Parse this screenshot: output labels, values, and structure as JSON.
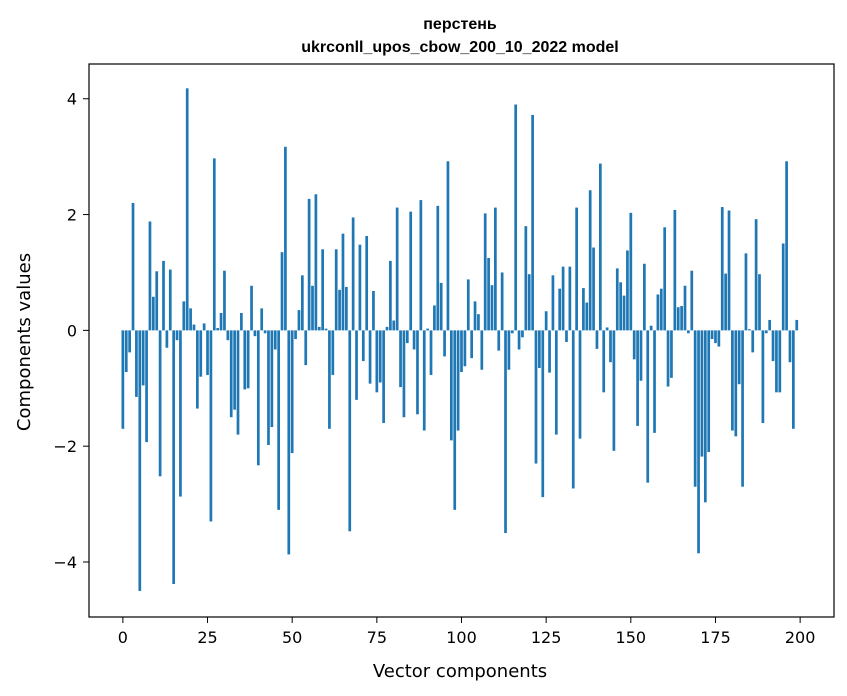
{
  "chart_data": {
    "type": "bar",
    "title": "перстень",
    "subtitle": "ukrconll_upos_cbow_200_10_2022 model",
    "xlabel": "Vector components",
    "ylabel": "Components values",
    "xlim": [
      -10,
      210
    ],
    "ylim": [
      -4.95,
      4.6
    ],
    "xticks": [
      0,
      25,
      50,
      75,
      100,
      125,
      150,
      175,
      200
    ],
    "yticks": [
      -4,
      -2,
      0,
      2,
      4
    ],
    "xtick_labels": [
      "0",
      "25",
      "50",
      "75",
      "100",
      "125",
      "150",
      "175",
      "200"
    ],
    "ytick_labels": [
      "−4",
      "−2",
      "0",
      "2",
      "4"
    ],
    "grid": false,
    "legend": "none",
    "bar_color": "#1f77b4",
    "x": [
      0,
      1,
      2,
      3,
      4,
      5,
      6,
      7,
      8,
      9,
      10,
      11,
      12,
      13,
      14,
      15,
      16,
      17,
      18,
      19,
      20,
      21,
      22,
      23,
      24,
      25,
      26,
      27,
      28,
      29,
      30,
      31,
      32,
      33,
      34,
      35,
      36,
      37,
      38,
      39,
      40,
      41,
      42,
      43,
      44,
      45,
      46,
      47,
      48,
      49,
      50,
      51,
      52,
      53,
      54,
      55,
      56,
      57,
      58,
      59,
      60,
      61,
      62,
      63,
      64,
      65,
      66,
      67,
      68,
      69,
      70,
      71,
      72,
      73,
      74,
      75,
      76,
      77,
      78,
      79,
      80,
      81,
      82,
      83,
      84,
      85,
      86,
      87,
      88,
      89,
      90,
      91,
      92,
      93,
      94,
      95,
      96,
      97,
      98,
      99,
      100,
      101,
      102,
      103,
      104,
      105,
      106,
      107,
      108,
      109,
      110,
      111,
      112,
      113,
      114,
      115,
      116,
      117,
      118,
      119,
      120,
      121,
      122,
      123,
      124,
      125,
      126,
      127,
      128,
      129,
      130,
      131,
      132,
      133,
      134,
      135,
      136,
      137,
      138,
      139,
      140,
      141,
      142,
      143,
      144,
      145,
      146,
      147,
      148,
      149,
      150,
      151,
      152,
      153,
      154,
      155,
      156,
      157,
      158,
      159,
      160,
      161,
      162,
      163,
      164,
      165,
      166,
      167,
      168,
      169,
      170,
      171,
      172,
      173,
      174,
      175,
      176,
      177,
      178,
      179,
      180,
      181,
      182,
      183,
      184,
      185,
      186,
      187,
      188,
      189,
      190,
      191,
      192,
      193,
      194,
      195,
      196,
      197,
      198,
      199
    ],
    "values": [
      -1.7,
      -0.72,
      -0.38,
      2.2,
      -1.15,
      -4.5,
      -0.95,
      -1.93,
      1.88,
      0.58,
      1.02,
      -2.52,
      1.2,
      -0.3,
      1.05,
      -4.38,
      -0.17,
      -2.87,
      0.5,
      4.18,
      0.38,
      0.1,
      -1.35,
      -0.8,
      0.12,
      -0.77,
      -3.3,
      2.97,
      0.04,
      0.3,
      1.03,
      -0.17,
      -1.5,
      -1.37,
      -1.8,
      0.3,
      -1.02,
      -1.0,
      0.77,
      -0.1,
      -2.33,
      0.38,
      -0.05,
      -1.98,
      -1.67,
      -0.33,
      -3.1,
      1.35,
      3.17,
      -3.87,
      -2.12,
      -0.15,
      0.35,
      0.95,
      -0.6,
      2.27,
      0.77,
      2.35,
      0.06,
      1.4,
      0.03,
      -1.7,
      -0.77,
      1.4,
      0.7,
      1.67,
      0.75,
      -3.47,
      1.95,
      -1.2,
      1.48,
      -0.53,
      1.63,
      -0.92,
      0.68,
      -1.07,
      -0.9,
      -1.6,
      0.06,
      1.2,
      0.17,
      2.12,
      -0.98,
      -1.5,
      -0.22,
      2.05,
      -0.33,
      -1.45,
      2.25,
      -1.73,
      0.03,
      -0.77,
      0.43,
      2.15,
      0.82,
      -0.45,
      2.92,
      -1.9,
      -3.1,
      -1.73,
      -0.72,
      -0.62,
      0.88,
      -0.48,
      0.5,
      0.28,
      -0.68,
      2.02,
      1.25,
      0.78,
      2.12,
      -0.35,
      1.0,
      -3.5,
      -0.68,
      -0.05,
      3.9,
      -0.33,
      -0.12,
      1.8,
      0.97,
      3.72,
      -2.3,
      -0.65,
      -2.88,
      0.33,
      -0.73,
      0.95,
      -1.8,
      0.72,
      1.1,
      -0.2,
      1.1,
      -2.73,
      2.12,
      -1.87,
      0.73,
      0.48,
      2.42,
      1.43,
      -0.32,
      2.88,
      -1.07,
      0.05,
      -0.55,
      -2.08,
      1.07,
      0.83,
      0.6,
      1.38,
      2.03,
      -0.5,
      -1.65,
      -0.87,
      1.15,
      -2.63,
      0.08,
      -1.77,
      0.62,
      0.72,
      1.78,
      -0.97,
      -0.82,
      2.08,
      0.4,
      0.42,
      0.77,
      -0.05,
      1.03,
      -2.7,
      -3.85,
      -2.18,
      -2.97,
      -2.1,
      -0.15,
      -0.22,
      -0.28,
      2.13,
      0.98,
      2.07,
      -1.73,
      -1.83,
      -0.93,
      -2.7,
      1.33,
      0.02,
      -0.38,
      1.92,
      0.97,
      -1.6,
      -0.05,
      0.18,
      -0.53,
      -1.07,
      -1.07,
      1.5,
      2.92,
      -0.55,
      -1.7,
      0.18
    ]
  }
}
